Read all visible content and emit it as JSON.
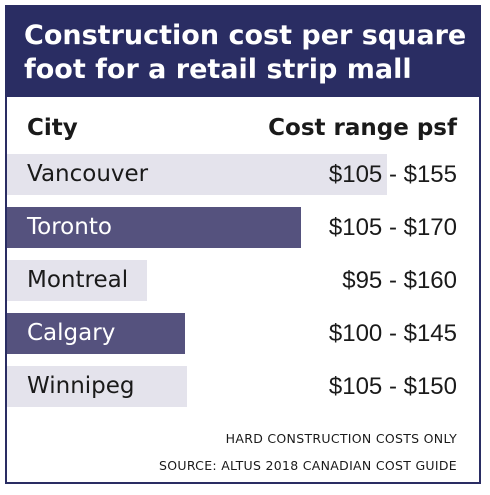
{
  "chart_data": {
    "type": "table",
    "title_lines": [
      "Construction cost per square",
      "foot for a retail strip mall"
    ],
    "columns": [
      "City",
      "Cost range psf"
    ],
    "rows": [
      {
        "city": "Vancouver",
        "range": "$105 - $155",
        "low": 105,
        "high": 155,
        "highlight": false
      },
      {
        "city": "Toronto",
        "range": "$105 - $170",
        "low": 105,
        "high": 170,
        "highlight": true
      },
      {
        "city": "Montreal",
        "range": "$95 - $160",
        "low": 95,
        "high": 160,
        "highlight": false
      },
      {
        "city": "Calgary",
        "range": "$100 - $145",
        "low": 100,
        "high": 145,
        "highlight": true
      },
      {
        "city": "Winnipeg",
        "range": "$105 - $150",
        "low": 105,
        "high": 150,
        "highlight": false
      }
    ],
    "notes": [
      "HARD CONSTRUCTION COSTS ONLY",
      "SOURCE: ALTUS 2018 CANADIAN COST GUIDE"
    ]
  },
  "colors": {
    "header_bg": "#2a2d63",
    "highlight_bar": "#55527e",
    "plain_bar": "#e4e3ec",
    "highlight_text": "#ffffff",
    "plain_text": "#1a1a1a"
  }
}
